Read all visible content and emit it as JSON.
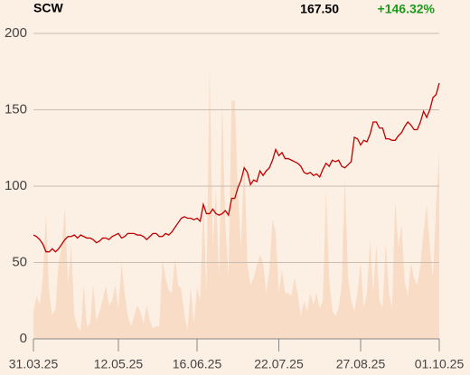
{
  "chart_data": {
    "type": "line",
    "title": "SCW",
    "price_label": "167.50",
    "change_label": "+146.32%",
    "change_color": "#1a9a1a",
    "x": [
      0,
      1,
      2,
      3,
      4,
      5,
      6,
      7,
      8,
      9,
      10,
      11,
      12,
      13,
      14,
      15,
      16,
      17,
      18,
      19,
      20,
      21,
      22,
      23,
      24,
      25,
      26,
      27,
      28,
      29,
      30,
      31,
      32,
      33,
      34,
      35,
      36,
      37,
      38,
      39,
      40,
      41,
      42,
      43,
      44,
      45,
      46,
      47,
      48,
      49,
      50,
      51,
      52,
      53,
      54,
      55,
      56,
      57,
      58,
      59,
      60,
      61,
      62,
      63,
      64,
      65,
      66,
      67,
      68,
      69,
      70,
      71,
      72,
      73,
      74,
      75,
      76,
      77,
      78,
      79,
      80,
      81,
      82,
      83,
      84,
      85,
      86,
      87,
      88,
      89,
      90,
      91,
      92,
      93,
      94,
      95,
      96,
      97,
      98,
      99,
      100,
      101,
      102,
      103,
      104,
      105,
      106,
      107,
      108,
      109,
      110,
      111,
      112,
      113,
      114,
      115,
      116,
      117,
      118,
      119,
      120,
      121,
      122,
      123,
      124,
      125,
      126,
      127,
      128,
      129
    ],
    "series": [
      {
        "color": "#c00000",
        "values": [
          68,
          67,
          65,
          62,
          57,
          57,
          59,
          57,
          59,
          62,
          65,
          67,
          67,
          68,
          66,
          68,
          67,
          66,
          66,
          65,
          63,
          64,
          66,
          66,
          65,
          67,
          68,
          69,
          66,
          67,
          69,
          69,
          69,
          68,
          68,
          67,
          65,
          67,
          69,
          69,
          67,
          67,
          69,
          68,
          70,
          73,
          76,
          79,
          80,
          79,
          79,
          78,
          79,
          77,
          88,
          82,
          82,
          85,
          82,
          81,
          82,
          84,
          81,
          92,
          92,
          99,
          104,
          112,
          109,
          101,
          104,
          103,
          110,
          107,
          110,
          112,
          117,
          124,
          120,
          122,
          118,
          118,
          117,
          116,
          115,
          113,
          109,
          108,
          109,
          107,
          108,
          106,
          111,
          115,
          113,
          117,
          116,
          117,
          113,
          112,
          114,
          116,
          132,
          131,
          127,
          130,
          129,
          134,
          142,
          142,
          138,
          138,
          131,
          131,
          130,
          130,
          133,
          135,
          139,
          142,
          140,
          137,
          137,
          142,
          149,
          145,
          150,
          158,
          160,
          167.5
        ]
      }
    ],
    "volume": {
      "color": "#f8dcc6",
      "values": [
        18,
        28,
        22,
        40,
        82,
        30,
        15,
        20,
        50,
        60,
        86,
        35,
        62,
        15,
        8,
        5,
        35,
        8,
        10,
        35,
        12,
        18,
        25,
        35,
        22,
        25,
        35,
        20,
        50,
        30,
        15,
        8,
        15,
        22,
        18,
        10,
        22,
        12,
        7,
        8,
        8,
        52,
        40,
        32,
        30,
        53,
        35,
        33,
        15,
        6,
        34,
        10,
        34,
        25,
        90,
        30,
        178,
        60,
        98,
        40,
        155,
        75,
        40,
        156,
        156,
        95,
        60,
        120,
        50,
        35,
        40,
        48,
        55,
        50,
        30,
        45,
        78,
        70,
        30,
        45,
        30,
        30,
        28,
        40,
        30,
        15,
        25,
        18,
        30,
        22,
        30,
        20,
        25,
        97,
        40,
        18,
        15,
        20,
        35,
        106,
        40,
        25,
        18,
        30,
        50,
        20,
        30,
        65,
        30,
        62,
        25,
        20,
        63,
        30,
        20,
        90,
        60,
        75,
        38,
        28,
        50,
        40,
        35,
        48,
        70,
        88,
        60,
        40,
        88,
        122
      ]
    },
    "xlim": [
      0,
      129
    ],
    "xticks": [
      {
        "value": 0,
        "label": "31.03.25"
      },
      {
        "value": 27,
        "label": "12.05.25"
      },
      {
        "value": 52,
        "label": "16.06.25"
      },
      {
        "value": 78,
        "label": "22.07.25"
      },
      {
        "value": 104,
        "label": "27.08.25"
      },
      {
        "value": 129,
        "label": "01.10.25"
      }
    ],
    "ylim": [
      0,
      200
    ],
    "yticks": [
      0,
      50,
      100,
      150,
      200
    ],
    "grid": true
  }
}
